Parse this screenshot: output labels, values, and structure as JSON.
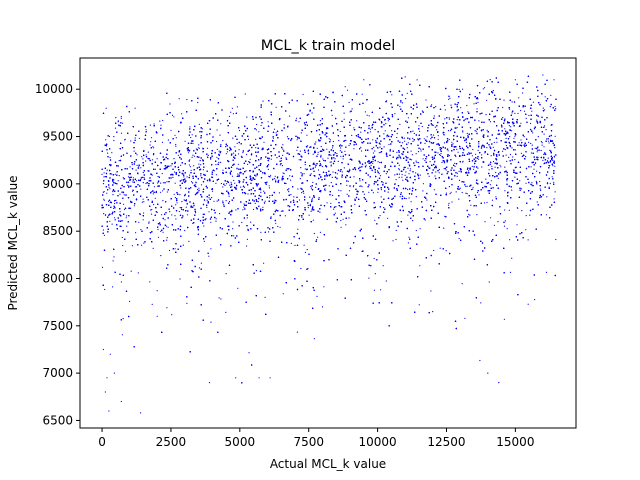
{
  "chart_data": {
    "type": "scatter",
    "title": "MCL_k train model",
    "xlabel": "Actual MCL_k value",
    "ylabel": "Predicted MCL_k value",
    "xlim": [
      -800,
      17200
    ],
    "ylim": [
      6420,
      10330
    ],
    "xticks": [
      0,
      2500,
      5000,
      7500,
      10000,
      12500,
      15000
    ],
    "yticks": [
      6500,
      7000,
      7500,
      8000,
      8500,
      9000,
      9500,
      10000
    ],
    "grid": false,
    "marker_color": "#0000ff",
    "series": [
      {
        "x_range": [
          0,
          16500
        ],
        "y_range": [
          6580,
          10150
        ],
        "approx_point_count": 16500,
        "trend": "dense band; predicted value rises slowly from about 9000 at x=0 to about 9400 at x=16500, with a sparse lower tail down to about 6600",
        "points": [
          [
            0,
            9100
          ],
          [
            50,
            7250
          ],
          [
            120,
            6800
          ],
          [
            180,
            6950
          ],
          [
            250,
            6600
          ],
          [
            300,
            7200
          ],
          [
            450,
            7000
          ],
          [
            700,
            6700
          ],
          [
            1400,
            6580
          ],
          [
            3900,
            6900
          ],
          [
            5700,
            6950
          ],
          [
            6100,
            6950
          ],
          [
            14000,
            7000
          ],
          [
            14400,
            6900
          ],
          [
            150,
            9800
          ],
          [
            500,
            9700
          ],
          [
            1200,
            9800
          ],
          [
            2800,
            9900
          ],
          [
            5200,
            9950
          ],
          [
            9500,
            10100
          ],
          [
            11000,
            10130
          ],
          [
            15000,
            10100
          ],
          [
            16000,
            10150
          ],
          [
            16400,
            10100
          ],
          [
            2000,
            7600
          ],
          [
            8000,
            7700
          ],
          [
            12000,
            7650
          ]
        ]
      }
    ]
  }
}
